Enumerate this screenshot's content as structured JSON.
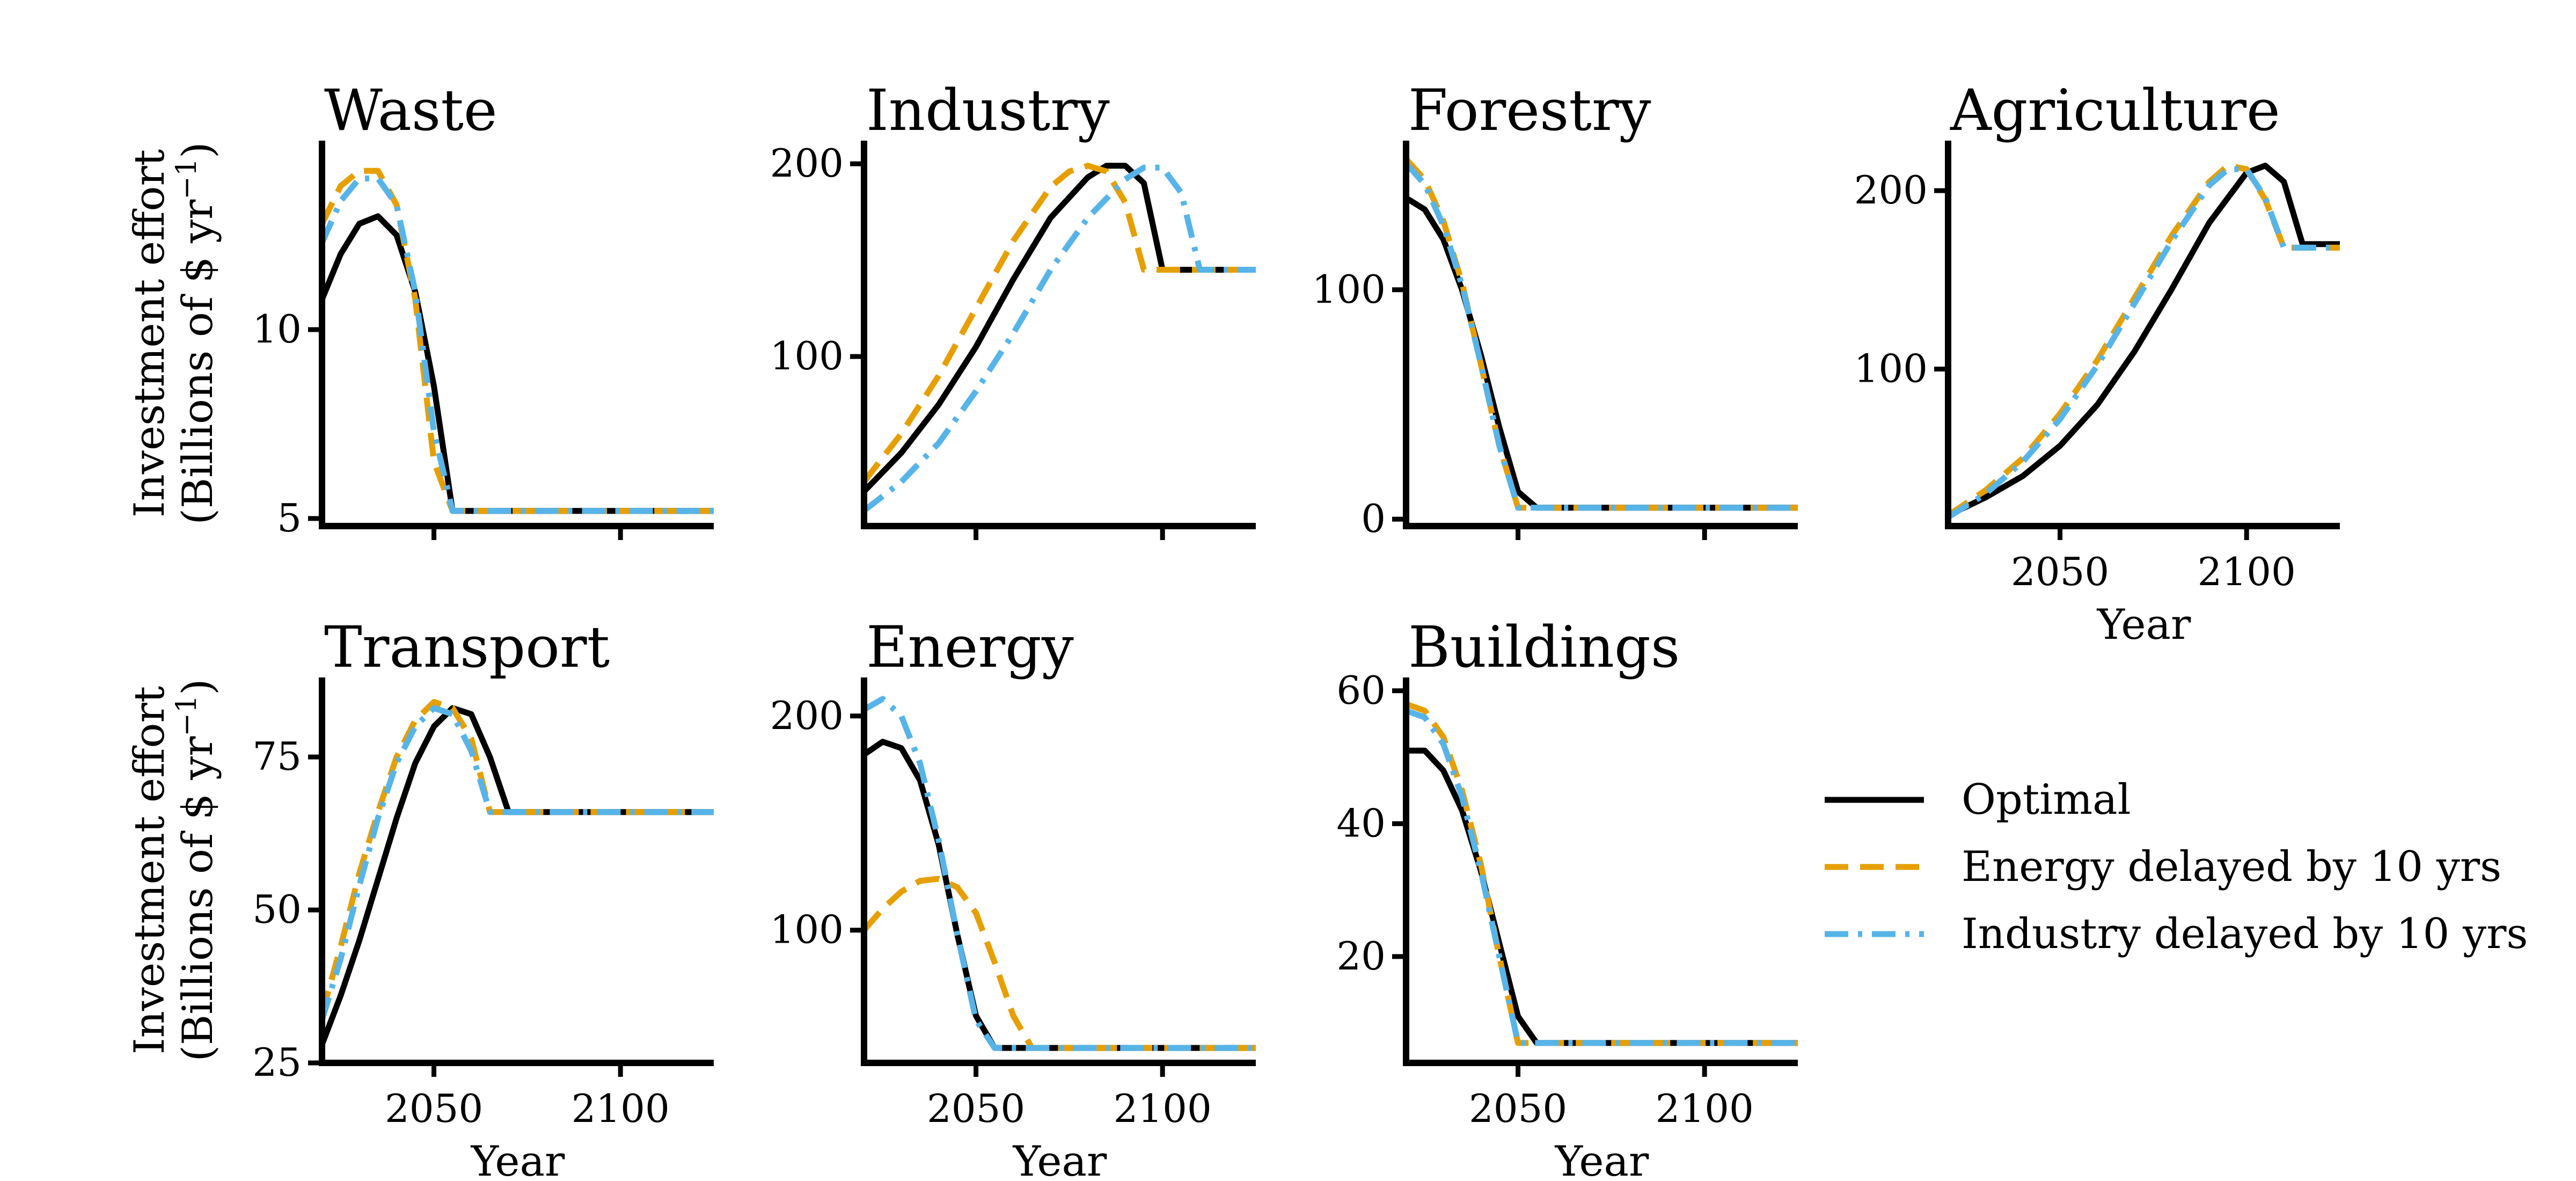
{
  "chart_data": {
    "type": "line",
    "colors": {
      "optimal": "#000000",
      "energy_delayed": "#E69F00",
      "industry_delayed": "#56B4E9"
    },
    "legend": {
      "placement": "lower-right",
      "entries": [
        {
          "name": "Optimal",
          "style": "solid",
          "color": "#000000"
        },
        {
          "name": "Energy delayed by 10 yrs",
          "style": "dashed",
          "color": "#E69F00"
        },
        {
          "name": "Industry delayed by 10 yrs",
          "style": "dashdot",
          "color": "#56B4E9"
        }
      ]
    },
    "shared_xlabel": "Year",
    "shared_ylabel_line1": "Investment effort",
    "shared_ylabel_line2": "(Billions of $ yr",
    "shared_ylabel_sup": "−1",
    "shared_ylabel_end": ")",
    "panels": [
      {
        "title": "Waste",
        "xlim": [
          2020,
          2125
        ],
        "ylim": [
          4.8,
          15.0
        ],
        "xticks": [
          2050,
          2100
        ],
        "xticklabels": [
          "",
          ""
        ],
        "yticks": [
          5,
          10
        ],
        "yticklabels": [
          "5",
          "10"
        ],
        "show_xlabel": false,
        "show_ylabel": true,
        "series": [
          {
            "name": "Optimal",
            "x": [
              2020,
              2025,
              2030,
              2035,
              2040,
              2045,
              2050,
              2055,
              2060,
              2125
            ],
            "y": [
              10.8,
              12.0,
              12.8,
              13.0,
              12.5,
              11.0,
              8.5,
              5.2,
              5.2,
              5.2
            ]
          },
          {
            "name": "Energy delayed by 10 yrs",
            "x": [
              2020,
              2025,
              2030,
              2035,
              2040,
              2045,
              2050,
              2055,
              2060,
              2125
            ],
            "y": [
              12.8,
              13.8,
              14.2,
              14.2,
              13.3,
              10.8,
              6.5,
              5.2,
              5.2,
              5.2
            ]
          },
          {
            "name": "Industry delayed by 10 yrs",
            "x": [
              2020,
              2025,
              2030,
              2035,
              2040,
              2045,
              2050,
              2055,
              2060,
              2125
            ],
            "y": [
              12.3,
              13.4,
              14.0,
              14.0,
              13.3,
              11.0,
              7.3,
              5.2,
              5.2,
              5.2
            ]
          }
        ]
      },
      {
        "title": "Industry",
        "xlim": [
          2020,
          2125
        ],
        "ylim": [
          12,
          212
        ],
        "xticks": [
          2050,
          2100
        ],
        "xticklabels": [
          "",
          ""
        ],
        "yticks": [
          100,
          200
        ],
        "yticklabels": [
          "100",
          "200"
        ],
        "show_xlabel": false,
        "show_ylabel": false,
        "series": [
          {
            "name": "Optimal",
            "x": [
              2020,
              2030,
              2040,
              2050,
              2060,
              2070,
              2080,
              2085,
              2090,
              2095,
              2100,
              2125
            ],
            "y": [
              30,
              50,
              75,
              105,
              140,
              172,
              193,
              199,
              199,
              190,
              145,
              145
            ]
          },
          {
            "name": "Energy delayed by 10 yrs",
            "x": [
              2020,
              2030,
              2040,
              2050,
              2060,
              2070,
              2075,
              2080,
              2085,
              2090,
              2095,
              2125
            ],
            "y": [
              35,
              60,
              90,
              125,
              160,
              188,
              196,
              199,
              196,
              180,
              145,
              145
            ]
          },
          {
            "name": "Industry delayed by 10 yrs",
            "x": [
              2020,
              2030,
              2040,
              2050,
              2060,
              2070,
              2080,
              2090,
              2095,
              2100,
              2105,
              2110,
              2125
            ],
            "y": [
              20,
              35,
              55,
              82,
              112,
              145,
              172,
              192,
              198,
              198,
              185,
              145,
              145
            ]
          }
        ]
      },
      {
        "title": "Forestry",
        "xlim": [
          2020,
          2125
        ],
        "ylim": [
          -3,
          165
        ],
        "xticks": [
          2050,
          2100
        ],
        "xticklabels": [
          "",
          ""
        ],
        "yticks": [
          0,
          100
        ],
        "yticklabels": [
          "0",
          "100"
        ],
        "show_xlabel": false,
        "show_ylabel": false,
        "series": [
          {
            "name": "Optimal",
            "x": [
              2020,
              2025,
              2030,
              2035,
              2040,
              2045,
              2050,
              2055,
              2060,
              2125
            ],
            "y": [
              140,
              135,
              122,
              100,
              72,
              40,
              12,
              5,
              5,
              5
            ]
          },
          {
            "name": "Energy delayed by 10 yrs",
            "x": [
              2020,
              2025,
              2030,
              2035,
              2040,
              2045,
              2050,
              2055,
              2060,
              2125
            ],
            "y": [
              157,
              148,
              130,
              103,
              68,
              32,
              5,
              5,
              5,
              5
            ]
          },
          {
            "name": "Industry delayed by 10 yrs",
            "x": [
              2020,
              2025,
              2030,
              2035,
              2040,
              2045,
              2050,
              2055,
              2060,
              2125
            ],
            "y": [
              155,
              146,
              128,
              102,
              68,
              32,
              5,
              5,
              5,
              5
            ]
          }
        ]
      },
      {
        "title": "Agriculture",
        "xlim": [
          2020,
          2125
        ],
        "ylim": [
          12,
          228
        ],
        "xticks": [
          2050,
          2100
        ],
        "xticklabels": [
          "2050",
          "2100"
        ],
        "yticks": [
          100,
          200
        ],
        "yticklabels": [
          "100",
          "200"
        ],
        "show_xlabel": true,
        "show_ylabel": false,
        "series": [
          {
            "name": "Optimal",
            "x": [
              2020,
              2030,
              2040,
              2050,
              2060,
              2070,
              2080,
              2090,
              2100,
              2105,
              2110,
              2115,
              2125
            ],
            "y": [
              18,
              28,
              40,
              57,
              80,
              110,
              145,
              182,
              210,
              214,
              205,
              170,
              170
            ]
          },
          {
            "name": "Energy delayed by 10 yrs",
            "x": [
              2020,
              2030,
              2040,
              2050,
              2060,
              2070,
              2080,
              2090,
              2095,
              2100,
              2105,
              2110,
              2125
            ],
            "y": [
              18,
              32,
              50,
              75,
              105,
              140,
              175,
              205,
              214,
              212,
              195,
              168,
              168
            ]
          },
          {
            "name": "Industry delayed by 10 yrs",
            "x": [
              2020,
              2030,
              2040,
              2050,
              2060,
              2070,
              2080,
              2090,
              2095,
              2100,
              2105,
              2110,
              2125
            ],
            "y": [
              17,
              30,
              48,
              72,
              102,
              137,
              172,
              203,
              212,
              212,
              196,
              168,
              168
            ]
          }
        ]
      },
      {
        "title": "Transport",
        "xlim": [
          2020,
          2125
        ],
        "ylim": [
          25,
          88
        ],
        "xticks": [
          2050,
          2100
        ],
        "xticklabels": [
          "2050",
          "2100"
        ],
        "yticks": [
          25,
          50,
          75
        ],
        "yticklabels": [
          "25",
          "50",
          "75"
        ],
        "show_xlabel": true,
        "show_ylabel": true,
        "series": [
          {
            "name": "Optimal",
            "x": [
              2020,
              2025,
              2030,
              2035,
              2040,
              2045,
              2050,
              2055,
              2060,
              2065,
              2070,
              2125
            ],
            "y": [
              28,
              36,
              45,
              55,
              65,
              74,
              80,
              83,
              82,
              75,
              66,
              66
            ]
          },
          {
            "name": "Energy delayed by 10 yrs",
            "x": [
              2020,
              2025,
              2030,
              2035,
              2040,
              2045,
              2050,
              2055,
              2060,
              2065,
              2125
            ],
            "y": [
              33,
              44,
              56,
              66,
              75,
              81,
              84,
              83,
              78,
              66,
              66
            ]
          },
          {
            "name": "Industry delayed by 10 yrs",
            "x": [
              2020,
              2025,
              2030,
              2035,
              2040,
              2045,
              2050,
              2055,
              2060,
              2065,
              2125
            ],
            "y": [
              32,
              42,
              54,
              65,
              74,
              80,
              83,
              82,
              76,
              66,
              66
            ]
          }
        ]
      },
      {
        "title": "Energy",
        "xlim": [
          2020,
          2125
        ],
        "ylim": [
          38,
          218
        ],
        "xticks": [
          2050,
          2100
        ],
        "xticklabels": [
          "2050",
          "2100"
        ],
        "yticks": [
          100,
          200
        ],
        "yticklabels": [
          "100",
          "200"
        ],
        "show_xlabel": true,
        "show_ylabel": false,
        "series": [
          {
            "name": "Optimal",
            "x": [
              2020,
              2025,
              2030,
              2035,
              2040,
              2045,
              2050,
              2055,
              2060,
              2125
            ],
            "y": [
              182,
              188,
              185,
              170,
              140,
              98,
              60,
              45,
              45,
              45
            ]
          },
          {
            "name": "Energy delayed by 10 yrs",
            "x": [
              2020,
              2025,
              2030,
              2035,
              2040,
              2045,
              2050,
              2055,
              2060,
              2065,
              2125
            ],
            "y": [
              100,
              110,
              118,
              123,
              124,
              120,
              108,
              85,
              60,
              45,
              45
            ]
          },
          {
            "name": "Industry delayed by 10 yrs",
            "x": [
              2020,
              2025,
              2030,
              2035,
              2040,
              2045,
              2050,
              2055,
              2125
            ],
            "y": [
              203,
              208,
              200,
              178,
              142,
              98,
              58,
              45,
              45
            ]
          }
        ]
      },
      {
        "title": "Buildings",
        "xlim": [
          2020,
          2125
        ],
        "ylim": [
          4,
          62
        ],
        "xticks": [
          2050,
          2100
        ],
        "xticklabels": [
          "2050",
          "2100"
        ],
        "yticks": [
          20,
          40,
          60
        ],
        "yticklabels": [
          "20",
          "40",
          "60"
        ],
        "show_xlabel": true,
        "show_ylabel": false,
        "series": [
          {
            "name": "Optimal",
            "x": [
              2020,
              2025,
              2030,
              2035,
              2040,
              2045,
              2050,
              2055,
              2060,
              2125
            ],
            "y": [
              51,
              51,
              48,
              42,
              33,
              22,
              11,
              7,
              7,
              7
            ]
          },
          {
            "name": "Energy delayed by 10 yrs",
            "x": [
              2020,
              2025,
              2030,
              2035,
              2040,
              2045,
              2050,
              2055,
              2125
            ],
            "y": [
              58,
              57,
              53,
              45,
              34,
              20,
              7,
              7,
              7
            ]
          },
          {
            "name": "Industry delayed by 10 yrs",
            "x": [
              2020,
              2025,
              2030,
              2035,
              2040,
              2045,
              2050,
              2055,
              2125
            ],
            "y": [
              57,
              56,
              52,
              44,
              33,
              20,
              7,
              7,
              7
            ]
          }
        ]
      }
    ]
  }
}
